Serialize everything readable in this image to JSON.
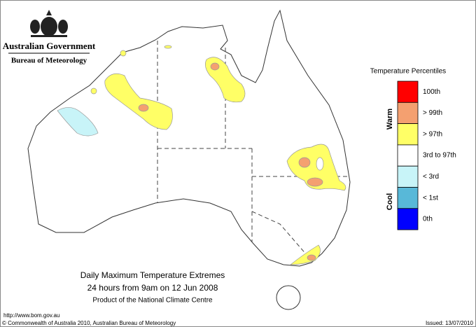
{
  "header": {
    "line1": "Australian Government",
    "line2": "Bureau of Meteorology"
  },
  "legend": {
    "title": "Temperature Percentiles",
    "warm": "Warm",
    "cool": "Cool",
    "items": [
      {
        "label": "100th",
        "color": "#ff0000"
      },
      {
        "label": "> 99th",
        "color": "#f4a070"
      },
      {
        "label": "> 97th",
        "color": "#ffff66"
      },
      {
        "label": "3rd to 97th",
        "color": "#ffffff"
      },
      {
        "label": "< 3rd",
        "color": "#c8f4f8"
      },
      {
        "label": "< 1st",
        "color": "#58b8d8"
      },
      {
        "label": "0th",
        "color": "#0000ff"
      }
    ]
  },
  "caption": {
    "title": "Daily Maximum Temperature Extremes",
    "subtitle": "24 hours from 9am on 12 Jun 2008",
    "product": "Product of the National Climate Centre"
  },
  "footer": {
    "url": "http://www.bom.gov.au",
    "copyright": "© Commonwealth of Australia 2010, Australian Bureau of Meteorology",
    "issued": "Issued: 13/07/2010"
  }
}
